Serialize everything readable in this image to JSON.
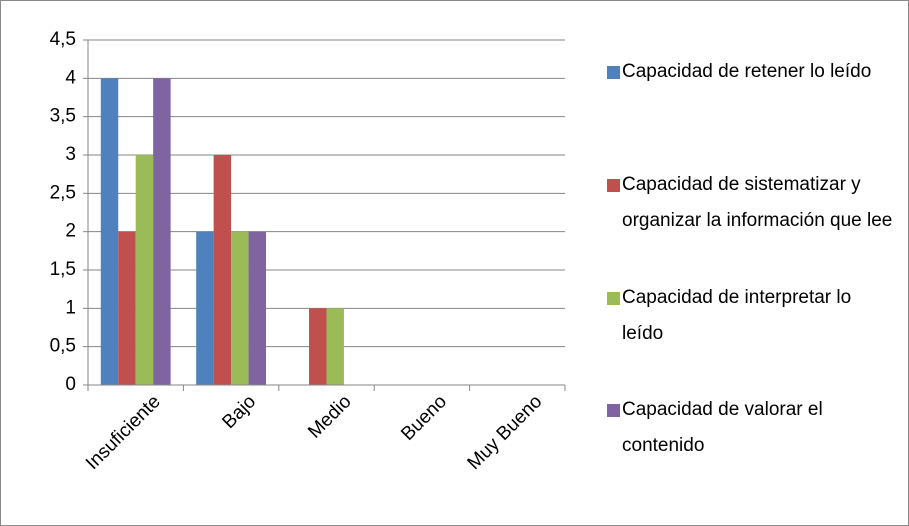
{
  "chart_data": {
    "type": "bar",
    "categories": [
      "Insuficiente",
      "Bajo",
      "Medio",
      "Bueno",
      "Muy Bueno"
    ],
    "series": [
      {
        "name": "Capacidad de retener lo leído",
        "color": "#4f81bd",
        "values": [
          4,
          2,
          0,
          0,
          0
        ]
      },
      {
        "name": "Capacidad de sistematizar y organizar la información que lee",
        "color": "#c0504d",
        "values": [
          2,
          3,
          1,
          0,
          0
        ]
      },
      {
        "name": "Capacidad de interpretar lo leído",
        "color": "#9bbb59",
        "values": [
          3,
          2,
          1,
          0,
          0
        ]
      },
      {
        "name": "Capacidad de valorar el contenido",
        "color": "#8064a2",
        "values": [
          4,
          2,
          0,
          0,
          0
        ]
      }
    ],
    "ylim": [
      0,
      4.5
    ],
    "yticks": [
      0,
      {
        "value": 0.5,
        "label": "0,5"
      },
      1,
      {
        "value": 1.5,
        "label": "1,5"
      },
      2,
      {
        "value": 2.5,
        "label": "2,5"
      },
      3,
      {
        "value": 3.5,
        "label": "3,5"
      },
      4,
      {
        "value": 4.5,
        "label": "4,5"
      }
    ],
    "grid": true,
    "legend": "right"
  }
}
